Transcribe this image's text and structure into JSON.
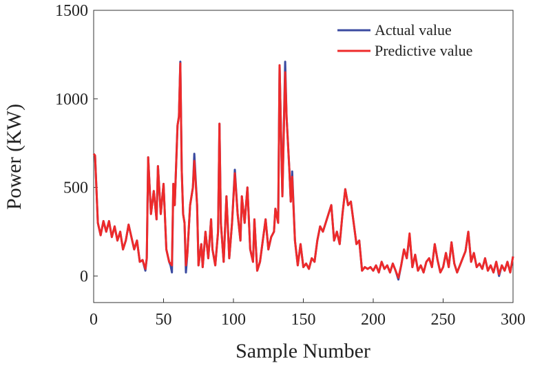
{
  "chart_data": {
    "type": "line",
    "x_label": "Sample Number",
    "y_label": "Power (KW)",
    "xlim": [
      0,
      300
    ],
    "xticks": [
      0,
      50,
      100,
      150,
      200,
      250,
      300
    ],
    "ylim": [
      -150,
      1500
    ],
    "yticks": [
      0,
      500,
      1000,
      1500
    ],
    "legend": "upper right",
    "x": [
      0,
      1,
      3,
      5,
      7,
      9,
      11,
      13,
      15,
      17,
      19,
      21,
      23,
      25,
      27,
      29,
      31,
      33,
      35,
      37,
      38,
      39,
      41,
      43,
      45,
      46,
      48,
      50,
      52,
      54,
      55,
      56,
      57,
      58,
      60,
      61,
      62,
      63,
      64,
      65,
      66,
      67,
      69,
      71,
      72,
      74,
      75,
      77,
      78,
      80,
      82,
      84,
      85,
      87,
      89,
      90,
      91,
      93,
      95,
      97,
      99,
      101,
      103,
      105,
      106,
      108,
      110,
      112,
      114,
      115,
      117,
      119,
      121,
      123,
      125,
      127,
      129,
      130,
      132,
      133,
      135,
      137,
      138,
      140,
      141,
      142,
      144,
      146,
      148,
      150,
      152,
      154,
      156,
      158,
      160,
      162,
      164,
      166,
      168,
      170,
      172,
      174,
      176,
      178,
      180,
      182,
      184,
      186,
      188,
      190,
      192,
      194,
      196,
      198,
      200,
      202,
      204,
      206,
      208,
      210,
      212,
      214,
      216,
      218,
      220,
      222,
      224,
      226,
      228,
      230,
      232,
      234,
      236,
      238,
      240,
      242,
      244,
      246,
      248,
      250,
      252,
      254,
      256,
      258,
      260,
      262,
      264,
      266,
      268,
      270,
      272,
      274,
      276,
      278,
      280,
      282,
      284,
      286,
      288,
      290,
      292,
      294,
      296,
      298,
      300
    ],
    "series": [
      {
        "name": "Actual value",
        "color": "#3a4aa0",
        "values": [
          690,
          680,
          300,
          230,
          310,
          250,
          310,
          220,
          280,
          200,
          250,
          150,
          200,
          290,
          220,
          150,
          200,
          80,
          90,
          30,
          100,
          670,
          350,
          480,
          320,
          620,
          350,
          520,
          150,
          80,
          60,
          20,
          520,
          400,
          850,
          900,
          1210,
          600,
          350,
          300,
          20,
          120,
          400,
          500,
          690,
          400,
          60,
          180,
          50,
          250,
          100,
          320,
          150,
          60,
          250,
          860,
          300,
          80,
          450,
          100,
          300,
          600,
          350,
          200,
          450,
          300,
          500,
          150,
          80,
          320,
          30,
          80,
          200,
          320,
          150,
          220,
          250,
          380,
          300,
          1190,
          450,
          1210,
          900,
          600,
          420,
          590,
          200,
          60,
          180,
          50,
          70,
          40,
          100,
          80,
          200,
          280,
          250,
          300,
          350,
          400,
          200,
          250,
          180,
          350,
          490,
          400,
          420,
          300,
          180,
          200,
          30,
          50,
          40,
          50,
          30,
          60,
          20,
          80,
          40,
          60,
          20,
          70,
          30,
          -20,
          60,
          150,
          100,
          230,
          50,
          120,
          30,
          60,
          20,
          80,
          100,
          50,
          180,
          90,
          20,
          50,
          130,
          50,
          190,
          70,
          20,
          60,
          100,
          140,
          250,
          80,
          130,
          50,
          70,
          40,
          100,
          30,
          60,
          20,
          80,
          0,
          60,
          30,
          80,
          20,
          110
        ]
      },
      {
        "name": "Predictive value",
        "color": "#ee2a2a",
        "values": [
          690,
          680,
          300,
          230,
          310,
          250,
          310,
          220,
          280,
          200,
          250,
          150,
          200,
          290,
          220,
          150,
          200,
          80,
          90,
          40,
          100,
          670,
          350,
          480,
          320,
          620,
          350,
          520,
          150,
          80,
          70,
          60,
          520,
          400,
          850,
          900,
          1200,
          600,
          350,
          300,
          60,
          120,
          400,
          500,
          650,
          400,
          60,
          180,
          50,
          250,
          100,
          320,
          150,
          60,
          250,
          860,
          300,
          80,
          450,
          100,
          300,
          580,
          350,
          200,
          450,
          300,
          500,
          150,
          80,
          320,
          30,
          80,
          200,
          320,
          150,
          220,
          250,
          380,
          300,
          1190,
          450,
          1150,
          900,
          600,
          420,
          560,
          200,
          60,
          180,
          50,
          70,
          40,
          100,
          80,
          200,
          280,
          250,
          300,
          350,
          400,
          200,
          250,
          180,
          350,
          490,
          400,
          420,
          300,
          180,
          200,
          30,
          50,
          40,
          50,
          30,
          60,
          20,
          80,
          40,
          60,
          20,
          70,
          30,
          -10,
          60,
          150,
          100,
          240,
          50,
          120,
          30,
          60,
          20,
          80,
          100,
          50,
          180,
          90,
          20,
          50,
          130,
          50,
          190,
          70,
          20,
          60,
          100,
          140,
          250,
          80,
          130,
          50,
          70,
          40,
          100,
          30,
          60,
          20,
          80,
          10,
          60,
          30,
          80,
          20,
          110
        ]
      }
    ]
  }
}
